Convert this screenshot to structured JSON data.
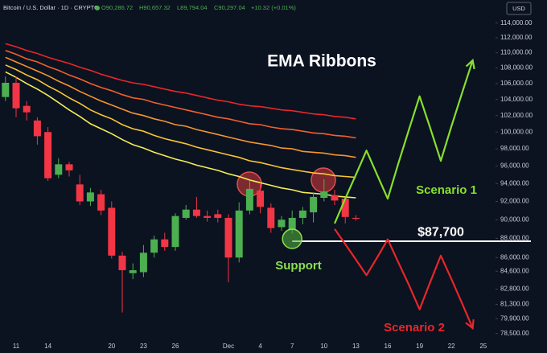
{
  "chart_data": {
    "type": "candlestick",
    "title": "EMA Ribbons",
    "header": {
      "symbol": "Bitcoin / U.S. Dollar · 1D · CRYPTO",
      "open": "O90,286.72",
      "high": "H90,657.32",
      "low": "L89,794.04",
      "close": "C90,297.04",
      "change": "+10.32 (+0.01%)",
      "currency": "USD"
    },
    "categories": [
      null,
      "11",
      null,
      null,
      "14",
      null,
      null,
      null,
      null,
      null,
      "20",
      null,
      null,
      "23",
      null,
      null,
      "26",
      null,
      null,
      null,
      null,
      "Dec",
      null,
      null,
      "4",
      null,
      null,
      "7",
      null,
      null,
      "10",
      null,
      null,
      "13",
      null,
      null,
      "16",
      null,
      null,
      "19",
      null,
      null,
      "22",
      null,
      null,
      "25"
    ],
    "open": [
      104300,
      106100,
      103200,
      101400,
      100000,
      95000,
      96200,
      93900,
      92000,
      92800,
      91300,
      86200,
      84400,
      84500,
      86500,
      87900,
      87100,
      90200,
      91100,
      90400,
      90600,
      90200,
      86000,
      91000,
      93200,
      91300,
      89200,
      88900,
      90200,
      90800,
      92400,
      92700,
      92300,
      90200,
      null,
      null,
      null,
      null,
      null,
      null,
      null,
      null,
      null,
      null,
      null,
      null
    ],
    "high": [
      106900,
      106900,
      103800,
      101800,
      100600,
      96900,
      96500,
      95000,
      93500,
      93300,
      92000,
      86600,
      85400,
      87300,
      88300,
      88600,
      90700,
      91600,
      92500,
      91000,
      91100,
      90600,
      91900,
      94300,
      94100,
      91800,
      90400,
      91000,
      91400,
      93000,
      94500,
      93300,
      92500,
      90500,
      null,
      null,
      null,
      null,
      null,
      null,
      null,
      null,
      null,
      null,
      null,
      null
    ],
    "low": [
      103800,
      101800,
      101400,
      98500,
      94300,
      94600,
      94800,
      91600,
      91500,
      90500,
      85900,
      80500,
      83800,
      84000,
      86000,
      86700,
      86700,
      90000,
      90200,
      89800,
      89700,
      83500,
      85500,
      90600,
      90700,
      88600,
      88800,
      88500,
      89500,
      89700,
      92000,
      91600,
      89600,
      89900,
      null,
      null,
      null,
      null,
      null,
      null,
      null,
      null,
      null,
      null,
      null,
      null
    ],
    "close": [
      106100,
      102900,
      102400,
      99500,
      94600,
      96200,
      95500,
      92000,
      93000,
      91000,
      86200,
      84700,
      84700,
      86500,
      87900,
      87100,
      90400,
      91100,
      90400,
      90200,
      90200,
      86000,
      91000,
      93400,
      91400,
      89100,
      90000,
      90200,
      91000,
      92500,
      93100,
      92100,
      90300,
      90100,
      null,
      null,
      null,
      null,
      null,
      null,
      null,
      null,
      null,
      null,
      null,
      null
    ],
    "up_color": "#4caf50",
    "down_color": "#f23645",
    "ribbons": [
      {
        "color": "#e8262a",
        "values": [
          111200,
          110800,
          110300,
          109900,
          109400,
          109000,
          108600,
          108100,
          107700,
          107200,
          106800,
          106400,
          106100,
          105900,
          105600,
          105300,
          105000,
          104800,
          104500,
          104200,
          103900,
          103700,
          103400,
          103200,
          103100,
          102900,
          102700,
          102600,
          102400,
          102200,
          102100,
          101900,
          101800,
          101600,
          null,
          null,
          null,
          null,
          null,
          null,
          null,
          null,
          null,
          null,
          null,
          null
        ]
      },
      {
        "color": "#f2602b",
        "values": [
          110300,
          109800,
          109200,
          108800,
          108200,
          107700,
          107100,
          106600,
          106000,
          105500,
          105100,
          104600,
          104200,
          104000,
          103600,
          103300,
          103000,
          102700,
          102400,
          102100,
          101800,
          101600,
          101300,
          101000,
          100900,
          100600,
          100400,
          100300,
          100100,
          99900,
          99800,
          99600,
          99500,
          99300,
          null,
          null,
          null,
          null,
          null,
          null,
          null,
          null,
          null,
          null,
          null,
          null
        ]
      },
      {
        "color": "#f6952e",
        "values": [
          109400,
          108800,
          108200,
          107600,
          107000,
          106300,
          105700,
          105000,
          104400,
          103800,
          103300,
          102800,
          102300,
          102000,
          101600,
          101300,
          100900,
          100700,
          100300,
          100000,
          99700,
          99400,
          99100,
          98800,
          98600,
          98400,
          98100,
          98000,
          97700,
          97600,
          97500,
          97300,
          97200,
          97000,
          null,
          null,
          null,
          null,
          null,
          null,
          null,
          null,
          null,
          null,
          null,
          null
        ]
      },
      {
        "color": "#f8c634",
        "values": [
          108400,
          107800,
          107100,
          106500,
          105700,
          105000,
          104200,
          103500,
          102700,
          102100,
          101600,
          100900,
          100400,
          100100,
          99600,
          99200,
          98900,
          98600,
          98200,
          97900,
          97600,
          97300,
          97000,
          96600,
          96400,
          96100,
          95800,
          95600,
          95400,
          95200,
          95100,
          94900,
          94800,
          94700,
          null,
          null,
          null,
          null,
          null,
          null,
          null,
          null,
          null,
          null,
          null,
          null
        ]
      },
      {
        "color": "#f4ee55",
        "values": [
          107500,
          106800,
          106000,
          105300,
          104500,
          103600,
          102700,
          101900,
          101000,
          100400,
          99800,
          99100,
          98500,
          98100,
          97600,
          97200,
          96800,
          96500,
          96100,
          95800,
          95500,
          95100,
          94800,
          94400,
          94100,
          93800,
          93500,
          93300,
          93000,
          92900,
          92800,
          92600,
          92500,
          92400,
          null,
          null,
          null,
          null,
          null,
          null,
          null,
          null,
          null,
          null,
          null,
          null
        ]
      }
    ],
    "series": [
      {
        "name": "Scenario 1",
        "color": "#86e02c",
        "values": [
          null,
          null,
          null,
          null,
          null,
          null,
          null,
          null,
          null,
          null,
          null,
          null,
          null,
          null,
          null,
          null,
          null,
          null,
          null,
          null,
          null,
          null,
          null,
          null,
          null,
          null,
          null,
          null,
          null,
          null,
          null,
          89600,
          92300,
          95000,
          97800,
          95000,
          92300,
          96300,
          100300,
          104400,
          100500,
          96600,
          100700,
          104800,
          109000,
          null
        ]
      },
      {
        "name": "Scenario 2",
        "color": "#e8262a",
        "values": [
          null,
          null,
          null,
          null,
          null,
          null,
          null,
          null,
          null,
          null,
          null,
          null,
          null,
          null,
          null,
          null,
          null,
          null,
          null,
          null,
          null,
          null,
          null,
          null,
          null,
          null,
          null,
          null,
          null,
          null,
          null,
          89000,
          87400,
          85800,
          84200,
          86000,
          87900,
          85500,
          83200,
          80800,
          83500,
          86200,
          83800,
          81400,
          79000,
          null
        ]
      }
    ],
    "support": {
      "text": "Support",
      "value": 87700,
      "label": "$87,700"
    },
    "ylim": [
      78100,
      117200
    ],
    "log_scale": true,
    "yticks": [
      {
        "value": 114000,
        "label": "114,000.00"
      },
      {
        "value": 112000,
        "label": "112,000.00"
      },
      {
        "value": 110000,
        "label": "110,000.00"
      },
      {
        "value": 108000,
        "label": "108,000.00"
      },
      {
        "value": 106000,
        "label": "106,000.00"
      },
      {
        "value": 104000,
        "label": "104,000.00"
      },
      {
        "value": 102000,
        "label": "102,000.00"
      },
      {
        "value": 100000,
        "label": "100,000.00"
      },
      {
        "value": 98000,
        "label": "98,000.00"
      },
      {
        "value": 96000,
        "label": "96,000.00"
      },
      {
        "value": 94000,
        "label": "94,000.00"
      },
      {
        "value": 92000,
        "label": "92,000.00"
      },
      {
        "value": 90000,
        "label": "90,000.00"
      },
      {
        "value": 88000,
        "label": "88,000.00"
      },
      {
        "value": 86000,
        "label": "86,000.00"
      },
      {
        "value": 84600,
        "label": "84,600.00"
      },
      {
        "value": 82800,
        "label": "82,800.00"
      },
      {
        "value": 81300,
        "label": "81,300.00"
      },
      {
        "value": 79900,
        "label": "79,900.00"
      },
      {
        "value": 78500,
        "label": "78,500.00"
      }
    ]
  }
}
